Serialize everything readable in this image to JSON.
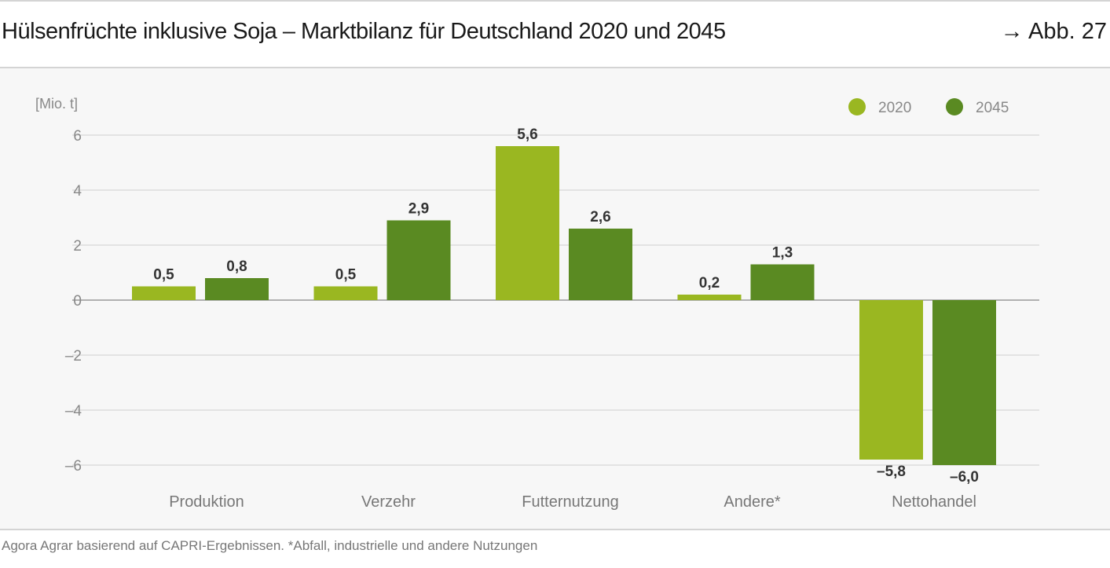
{
  "header": {
    "title": "Hülsenfrüchte inklusive Soja – Marktbilanz für Deutschland 2020 und 2045",
    "figure_ref": "→ Abb. 27"
  },
  "footer": {
    "source": "Agora Agrar basierend auf CAPRI-Ergebnissen. *Abfall, industrielle und andere Nutzungen"
  },
  "chart_data": {
    "type": "bar",
    "ylabel": "[Mio. t]",
    "ylim": [
      -6,
      6
    ],
    "yticks": [
      6,
      4,
      2,
      0,
      -2,
      -4,
      -6
    ],
    "ytick_labels": [
      "6",
      "4",
      "2",
      "0",
      "–2",
      "–4",
      "–6"
    ],
    "grid": true,
    "legend": "top-right",
    "categories": [
      "Produktion",
      "Verzehr",
      "Futternutzung",
      "Andere*",
      "Nettohandel"
    ],
    "series": [
      {
        "name": "2020",
        "color": "#9ab721",
        "values": [
          0.5,
          0.5,
          5.6,
          0.2,
          -5.8
        ],
        "labels": [
          "0,5",
          "0,5",
          "5,6",
          "0,2",
          "–5,8"
        ]
      },
      {
        "name": "2045",
        "color": "#5a8a22",
        "values": [
          0.8,
          2.9,
          2.6,
          1.3,
          -6.0
        ],
        "labels": [
          "0,8",
          "2,9",
          "2,6",
          "1,3",
          "–6,0"
        ]
      }
    ]
  }
}
